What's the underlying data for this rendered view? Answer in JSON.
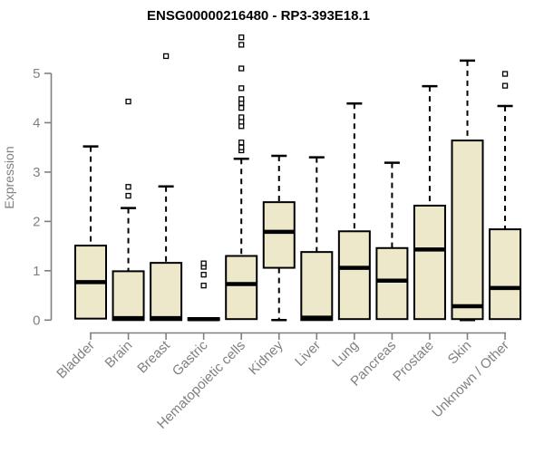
{
  "page": {
    "background": "#ffffff"
  },
  "chart_data": {
    "type": "boxplot",
    "title": "ENSG00000216480 - RP3-393E18.1",
    "ylabel": "Expression",
    "xlabel": "",
    "ylim": [
      0,
      5.9
    ],
    "yticks": [
      0,
      1,
      2,
      3,
      4,
      5
    ],
    "grid": false,
    "legend": false,
    "categories": [
      "Bladder",
      "Brain",
      "Breast",
      "Gastric",
      "Hematopoietic cells",
      "Kidney",
      "Liver",
      "Lung",
      "Pancreas",
      "Prostate",
      "Skin",
      "Unknown / Other"
    ],
    "series": [
      {
        "name": "Bladder",
        "low": 0.03,
        "q1": 0.03,
        "median": 0.77,
        "q3": 1.51,
        "high": 3.52,
        "outliers": []
      },
      {
        "name": "Brain",
        "low": 0.0,
        "q1": 0.0,
        "median": 0.04,
        "q3": 0.99,
        "high": 2.27,
        "outliers": [
          2.52,
          2.7,
          4.43
        ]
      },
      {
        "name": "Breast",
        "low": 0.0,
        "q1": 0.0,
        "median": 0.04,
        "q3": 1.16,
        "high": 2.71,
        "outliers": [
          5.35
        ]
      },
      {
        "name": "Gastric",
        "low": 0.0,
        "q1": 0.0,
        "median": 0.02,
        "q3": 0.04,
        "high": 0.04,
        "outliers": [
          0.7,
          0.92,
          1.08,
          1.15
        ]
      },
      {
        "name": "Hematopoietic cells",
        "low": 0.02,
        "q1": 0.02,
        "median": 0.73,
        "q3": 1.3,
        "high": 3.27,
        "outliers": [
          3.44,
          3.5,
          3.6,
          3.93,
          4.02,
          4.11,
          4.3,
          4.4,
          4.48,
          4.7,
          5.1,
          5.58,
          5.73
        ]
      },
      {
        "name": "Kidney",
        "low": 0.0,
        "q1": 1.06,
        "median": 1.79,
        "q3": 2.39,
        "high": 3.33,
        "outliers": []
      },
      {
        "name": "Liver",
        "low": 0.0,
        "q1": 0.0,
        "median": 0.05,
        "q3": 1.38,
        "high": 3.3,
        "outliers": []
      },
      {
        "name": "Lung",
        "low": 0.02,
        "q1": 0.02,
        "median": 1.06,
        "q3": 1.8,
        "high": 4.39,
        "outliers": []
      },
      {
        "name": "Pancreas",
        "low": 0.02,
        "q1": 0.02,
        "median": 0.8,
        "q3": 1.46,
        "high": 3.19,
        "outliers": []
      },
      {
        "name": "Prostate",
        "low": 0.02,
        "q1": 0.02,
        "median": 1.43,
        "q3": 2.32,
        "high": 4.74,
        "outliers": []
      },
      {
        "name": "Skin",
        "low": 0.0,
        "q1": 0.02,
        "median": 0.28,
        "q3": 3.64,
        "high": 5.26,
        "outliers": []
      },
      {
        "name": "Unknown / Other",
        "low": 0.02,
        "q1": 0.02,
        "median": 0.65,
        "q3": 1.84,
        "high": 4.34,
        "outliers": [
          4.75,
          4.99
        ]
      }
    ],
    "colors": {
      "box_fill": "#EDE8C9",
      "box_border": "#000000",
      "median": "#000000",
      "whisker": "#000000",
      "axis_color": "#808080",
      "text_color": "#808080",
      "title_color": "#000000",
      "background": "#ffffff"
    }
  }
}
